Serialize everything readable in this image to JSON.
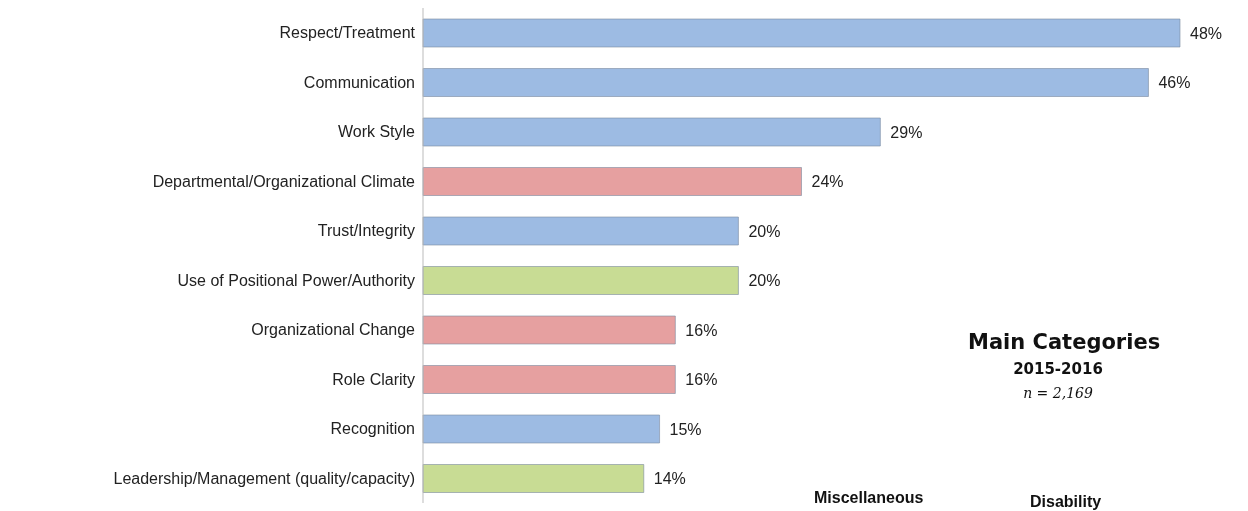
{
  "chart_data": {
    "type": "bar",
    "categories": [
      "Respect/Treatment",
      "Communication",
      "Work Style",
      "Departmental/Organizational Climate",
      "Trust/Integrity",
      "Use of Positional Power/Authority",
      "Organizational Change",
      "Role Clarity",
      "Recognition",
      "Leadership/Management (quality/capacity)"
    ],
    "values": [
      48,
      46,
      29,
      24,
      20,
      20,
      16,
      16,
      15,
      14
    ],
    "colors": [
      "#9dbbe3",
      "#9dbbe3",
      "#9dbbe3",
      "#e6a0a0",
      "#9dbbe3",
      "#c8dc94",
      "#e6a0a0",
      "#e6a0a0",
      "#9dbbe3",
      "#c8dc94"
    ],
    "value_labels": [
      "48%",
      "46%",
      "29%",
      "24%",
      "20%",
      "20%",
      "16%",
      "16%",
      "15%",
      "14%"
    ],
    "annotations": [
      "Main Categories",
      "2015-2016",
      "n = 2,169",
      "Miscellaneous",
      "Disability"
    ],
    "orientation": "horizontal"
  }
}
